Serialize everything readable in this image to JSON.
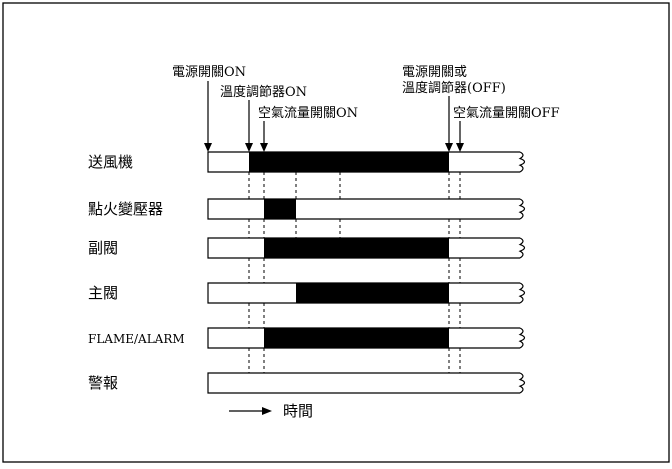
{
  "events": {
    "power_on": "電源開關ON",
    "temp_on": "溫度調節器ON",
    "airflow_on": "空氣流量開關ON",
    "power_off_line1": "電源開關或",
    "power_off_line2": "溫度調節器(OFF)",
    "airflow_off": "空氣流量開關OFF"
  },
  "rows": [
    {
      "label": "送風機",
      "active_start": 1,
      "active_end": 5
    },
    {
      "label": "點火變壓器",
      "active_start": 2,
      "active_end": 3
    },
    {
      "label": "副閥",
      "active_start": 2,
      "active_end": 5
    },
    {
      "label": "主閥",
      "active_start": 3,
      "active_end": 5
    },
    {
      "label": "FLAME/ALARM",
      "active_start": 2,
      "active_end": 5
    },
    {
      "label": "警報",
      "active_start": null,
      "active_end": null
    }
  ],
  "time_axis_label": "時間"
}
